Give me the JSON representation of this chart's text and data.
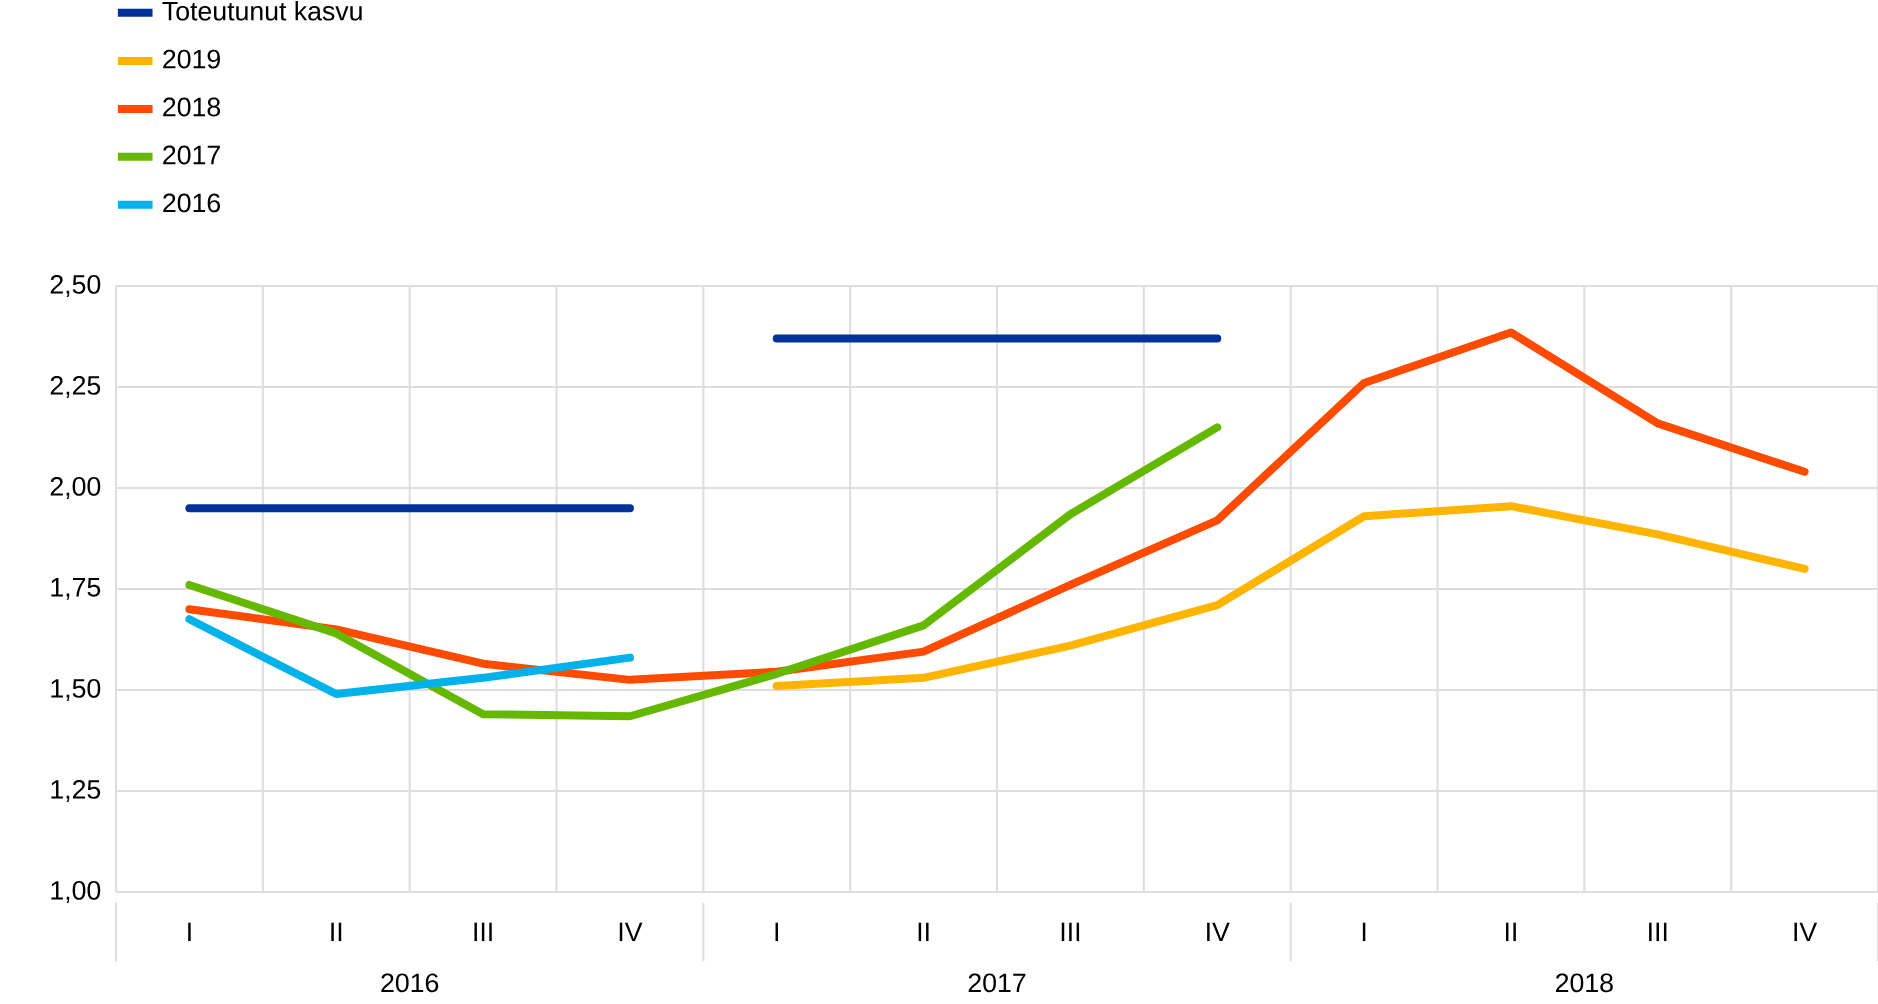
{
  "chart_data": {
    "type": "line",
    "categories": [
      "I",
      "II",
      "III",
      "IV",
      "I",
      "II",
      "III",
      "IV",
      "I",
      "II",
      "III",
      "IV"
    ],
    "series": [
      {
        "name": "Toteutunut kasvu",
        "color": "#003299",
        "values": [
          1.95,
          1.95,
          1.95,
          1.95,
          null,
          null,
          null,
          null,
          null,
          null,
          null,
          null
        ]
      },
      {
        "color": "#003299",
        "values": [
          null,
          null,
          null,
          null,
          2.37,
          2.37,
          2.37,
          2.37,
          null,
          null,
          null,
          null
        ]
      },
      {
        "name": "2019",
        "color": "#ffb400",
        "values": [
          null,
          null,
          null,
          null,
          1.51,
          1.53,
          1.61,
          1.71,
          1.93,
          1.955,
          1.885,
          1.8
        ]
      },
      {
        "name": "2018",
        "color": "#ff4b00",
        "values": [
          1.7,
          1.65,
          1.565,
          1.525,
          1.545,
          1.595,
          1.76,
          1.92,
          2.26,
          2.385,
          2.16,
          2.04
        ]
      },
      {
        "name": "2017",
        "color": "#65b800",
        "values": [
          1.76,
          1.64,
          1.44,
          1.435,
          1.54,
          1.66,
          1.935,
          2.15,
          null,
          null,
          null,
          null
        ]
      },
      {
        "name": "2016",
        "color": "#00b1ea",
        "values": [
          1.675,
          1.49,
          1.53,
          1.58,
          null,
          null,
          null,
          null,
          null,
          null,
          null,
          null
        ]
      }
    ],
    "annotations": [
      "2016",
      "2017",
      "2018"
    ],
    "ylim": [
      1.0,
      2.5
    ],
    "yticks": [
      {
        "value": 1.0,
        "label": "1,00"
      },
      {
        "value": 1.25,
        "label": "1,25"
      },
      {
        "value": 1.5,
        "label": "1,50"
      },
      {
        "value": 1.75,
        "label": "1,75"
      },
      {
        "value": 2.0,
        "label": "2,00"
      },
      {
        "value": 2.25,
        "label": "2,25"
      },
      {
        "value": 2.5,
        "label": "2,50"
      }
    ],
    "grid": true,
    "legend": "top left",
    "marker": "none",
    "line_style": "solid"
  }
}
